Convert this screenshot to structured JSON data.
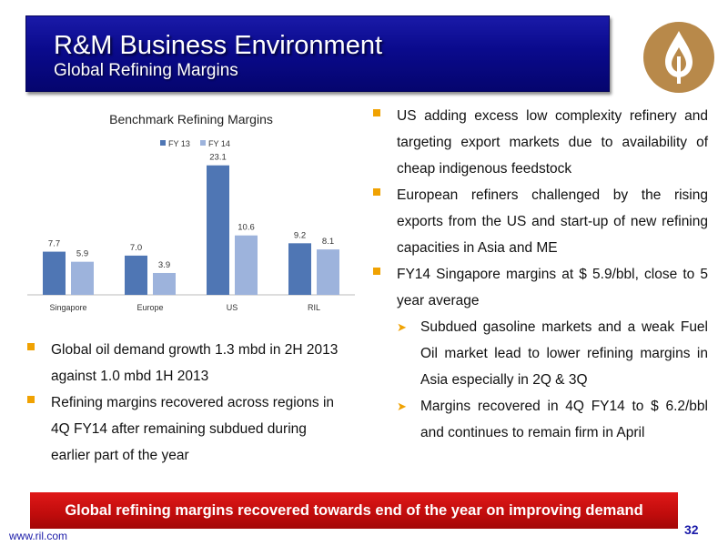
{
  "header": {
    "title": "R&M Business Environment",
    "subtitle": "Global Refining Margins"
  },
  "logo": {
    "icon": "reliance-logo-icon",
    "color": "#b8894a"
  },
  "chart_data": {
    "type": "bar",
    "title": "Benchmark Refining Margins",
    "categories": [
      "Singapore",
      "Europe",
      "US",
      "RIL"
    ],
    "series": [
      {
        "name": "FY 13",
        "values": [
          7.7,
          7.0,
          23.1,
          9.2
        ],
        "color": "#4f76b4"
      },
      {
        "name": "FY 14",
        "values": [
          5.9,
          3.9,
          10.6,
          8.1
        ],
        "color": "#9db3dc"
      }
    ],
    "legend": "top",
    "grid": false,
    "ylim": [
      0,
      25
    ]
  },
  "right_bullets": [
    {
      "text": "US adding excess low complexity refinery and targeting export markets due to availability of cheap indigenous feedstock"
    },
    {
      "text": "European refiners challenged by the rising exports from the US and start-up of new refining capacities in Asia and ME"
    },
    {
      "text": "FY14 Singapore margins at $ 5.9/bbl, close to 5 year average"
    }
  ],
  "right_sub_bullets": [
    {
      "text": "Subdued gasoline markets and a weak Fuel Oil market lead to lower refining margins in Asia especially in 2Q & 3Q"
    },
    {
      "text": "Margins recovered in 4Q FY14 to $ 6.2/bbl and continues to remain firm in April"
    }
  ],
  "left_bullets": [
    {
      "text": "Global oil demand growth 1.3 mbd  in 2H 2013 against 1.0 mbd 1H 2013"
    },
    {
      "text": "Refining margins recovered across regions in 4Q FY14 after remaining subdued during earlier part of the year"
    }
  ],
  "banner": "Global refining margins recovered towards end of the year on  improving demand",
  "slide_number": "32",
  "website": "www.ril.com",
  "colors": {
    "header_blue": "#0a0a8c",
    "bullet": "#f0a202",
    "banner_red": "#c00c0c"
  }
}
